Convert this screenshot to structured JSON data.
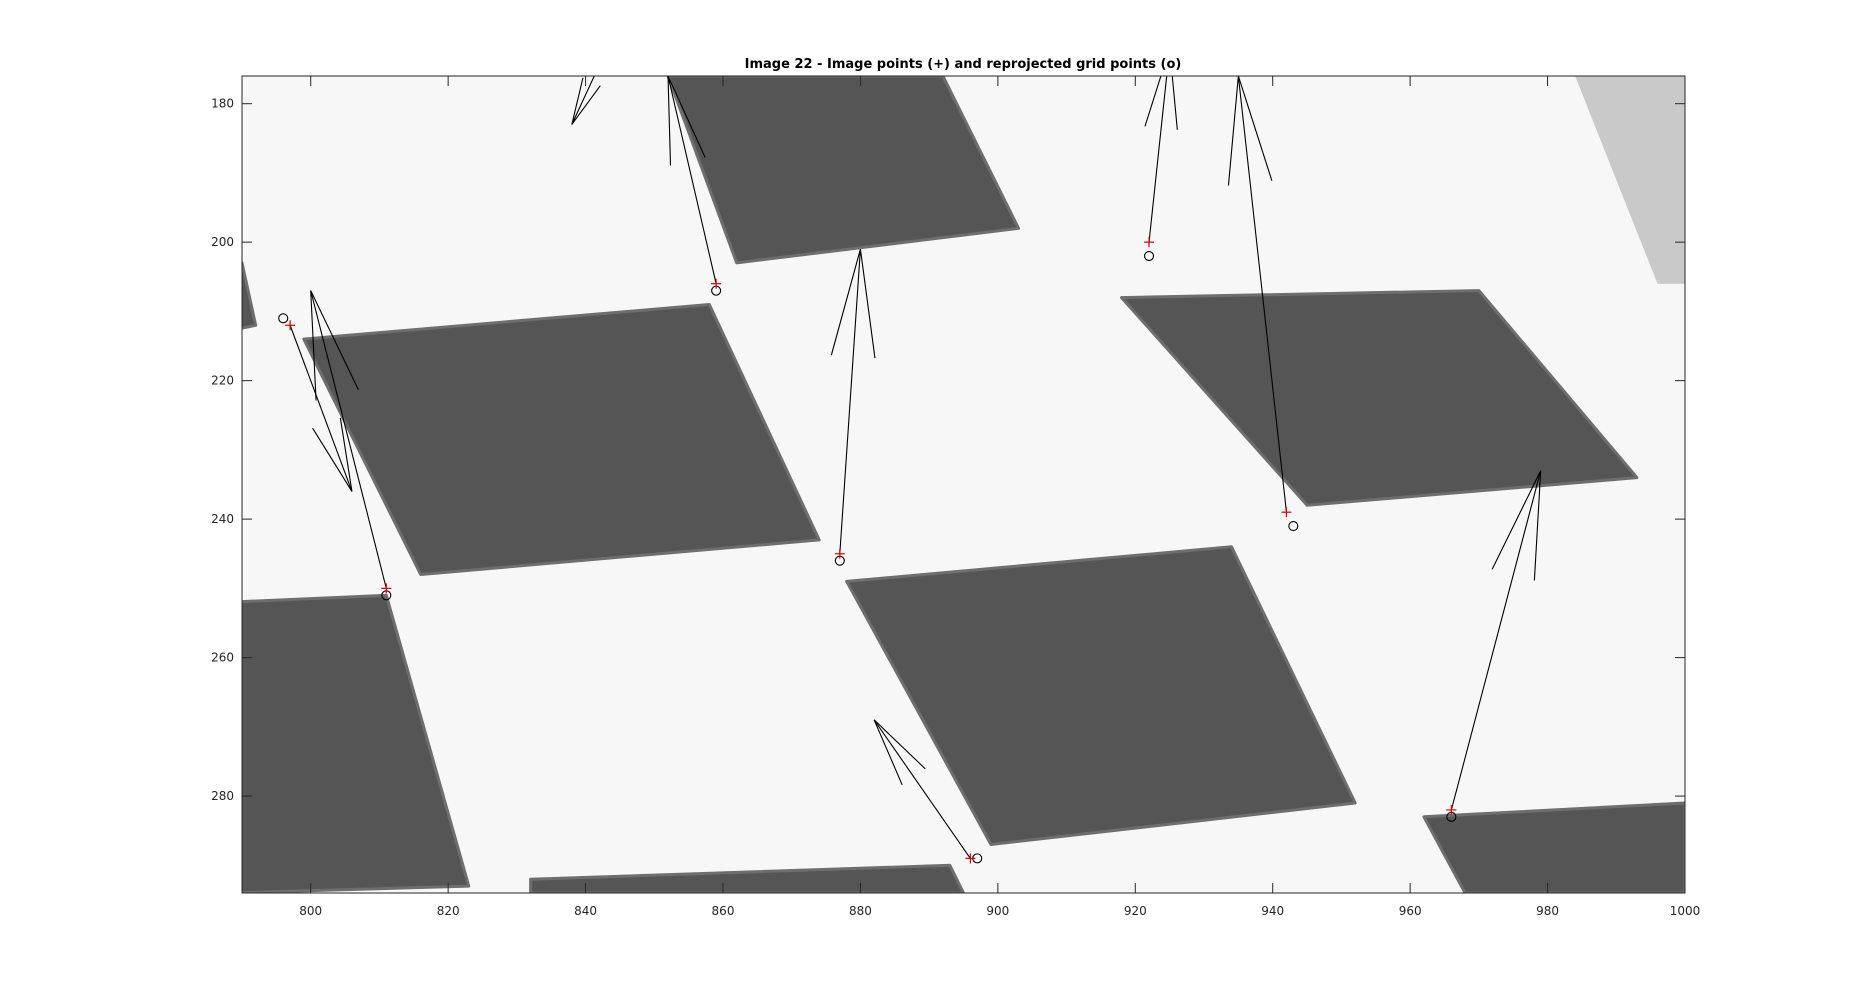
{
  "chart_data": {
    "type": "scatter",
    "title": "Image 22 - Image points (+) and reprojected grid points (o)",
    "xlim": [
      790,
      1000
    ],
    "ylim": [
      176,
      294
    ],
    "y_reversed": true,
    "x_ticks": [
      800,
      820,
      840,
      860,
      880,
      900,
      920,
      940,
      960,
      980,
      1000
    ],
    "y_ticks": [
      180,
      200,
      220,
      240,
      260,
      280
    ],
    "grid": false,
    "colors": {
      "image_point": "#d40000",
      "grid_point": "#000000",
      "arrow": "#000000",
      "dark_square": "#555555",
      "light_square": "#f7f7f7"
    },
    "background_image": {
      "description_kind": "grayscale checkerboard photo",
      "dark_squares": [
        [
          [
            852,
            176
          ],
          [
            892,
            176
          ],
          [
            903,
            198
          ],
          [
            862,
            203
          ]
        ],
        [
          [
            799,
            214
          ],
          [
            858,
            209
          ],
          [
            874,
            243
          ],
          [
            816,
            248
          ]
        ],
        [
          [
            918,
            208
          ],
          [
            970,
            207
          ],
          [
            993,
            234
          ],
          [
            945,
            238
          ]
        ],
        [
          [
            878,
            249
          ],
          [
            934,
            244
          ],
          [
            952,
            281
          ],
          [
            899,
            287
          ]
        ],
        [
          [
            788,
            252
          ],
          [
            811,
            251
          ],
          [
            823,
            293
          ],
          [
            788,
            294
          ]
        ],
        [
          [
            787,
            204
          ],
          [
            790,
            203
          ],
          [
            792,
            212
          ],
          [
            787,
            213
          ]
        ],
        [
          [
            832,
            292
          ],
          [
            893,
            290
          ],
          [
            895,
            294
          ],
          [
            832,
            294
          ]
        ],
        [
          [
            962,
            283
          ],
          [
            1000,
            281
          ],
          [
            1000,
            294
          ],
          [
            968,
            294
          ]
        ]
      ],
      "light_corner": [
        [
          984,
          176
        ],
        [
          1000,
          176
        ],
        [
          1000,
          206
        ],
        [
          996,
          206
        ]
      ]
    },
    "series": [
      {
        "name": "Image points (+)",
        "marker": "+",
        "points": [
          {
            "x": 797,
            "y": 212
          },
          {
            "x": 811,
            "y": 250
          },
          {
            "x": 859,
            "y": 206
          },
          {
            "x": 877,
            "y": 245
          },
          {
            "x": 922,
            "y": 200
          },
          {
            "x": 942,
            "y": 239
          },
          {
            "x": 896,
            "y": 289
          },
          {
            "x": 966,
            "y": 282
          }
        ]
      },
      {
        "name": "Reprojected grid points (o)",
        "marker": "o",
        "points": [
          {
            "x": 796,
            "y": 211
          },
          {
            "x": 811,
            "y": 251
          },
          {
            "x": 859,
            "y": 207
          },
          {
            "x": 877,
            "y": 246
          },
          {
            "x": 922,
            "y": 202
          },
          {
            "x": 943,
            "y": 241
          },
          {
            "x": 897,
            "y": 289
          },
          {
            "x": 966,
            "y": 283
          }
        ]
      }
    ],
    "error_arrows": [
      {
        "x0": 797,
        "y0": 212,
        "x1": 806,
        "y1": 236
      },
      {
        "x0": 811,
        "y0": 250,
        "x1": 800,
        "y1": 207
      },
      {
        "x0": 859,
        "y0": 206,
        "x1": 852,
        "y1": 176
      },
      {
        "x0": 877,
        "y0": 245,
        "x1": 880,
        "y1": 201
      },
      {
        "x0": 922,
        "y0": 200,
        "x1": 925,
        "y1": 172
      },
      {
        "x0": 942,
        "y0": 239,
        "x1": 935,
        "y1": 176
      },
      {
        "x0": 896,
        "y0": 289,
        "x1": 882,
        "y1": 269
      },
      {
        "x0": 966,
        "y0": 282,
        "x1": 979,
        "y1": 233
      },
      {
        "x0": 845,
        "y0": 168,
        "x1": 838,
        "y1": 183
      }
    ]
  }
}
